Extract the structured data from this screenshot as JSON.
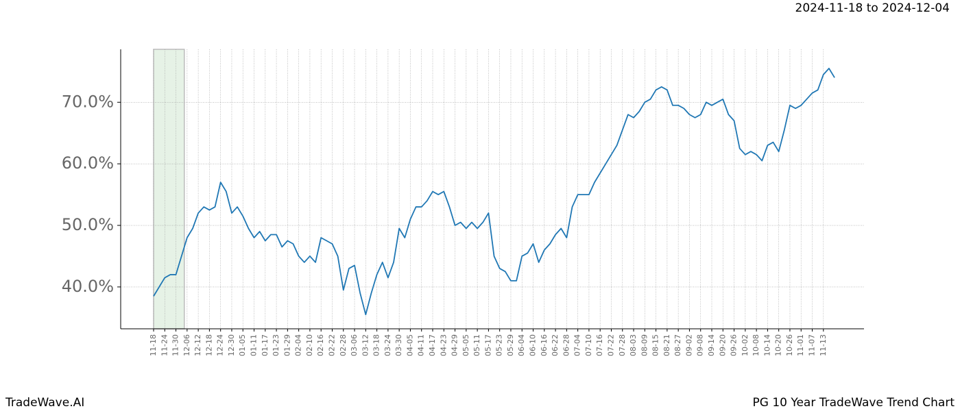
{
  "chart_data": {
    "type": "line",
    "subtitle": "2024-11-18 to 2024-12-04",
    "brand": "TradeWave.AI",
    "title": "PG 10 Year TradeWave Trend Chart",
    "categories": [
      "11-18",
      null,
      "11-24",
      null,
      "11-30",
      null,
      "12-06",
      null,
      "12-12",
      null,
      "12-18",
      null,
      "12-24",
      null,
      "12-30",
      null,
      "01-05",
      null,
      "01-11",
      null,
      "01-17",
      null,
      "01-23",
      null,
      "01-29",
      null,
      "02-04",
      null,
      "02-10",
      null,
      "02-16",
      null,
      "02-22",
      null,
      "02-28",
      null,
      "03-06",
      null,
      "03-12",
      null,
      "03-18",
      null,
      "03-24",
      null,
      "03-30",
      null,
      "04-05",
      null,
      "04-11",
      null,
      "04-17",
      null,
      "04-23",
      null,
      "04-29",
      null,
      "05-05",
      null,
      "05-11",
      null,
      "05-17",
      null,
      "05-23",
      null,
      "05-29",
      null,
      "06-04",
      null,
      "06-10",
      null,
      "06-16",
      null,
      "06-22",
      null,
      "06-28",
      null,
      "07-04",
      null,
      "07-10",
      null,
      "07-16",
      null,
      "07-22",
      null,
      "07-28",
      null,
      "08-03",
      null,
      "08-09",
      null,
      "08-15",
      null,
      "08-21",
      null,
      "08-27",
      null,
      "09-02",
      null,
      "09-08",
      null,
      "09-14",
      null,
      "09-20",
      null,
      "09-26",
      null,
      "10-02",
      null,
      "10-08",
      null,
      "10-14",
      null,
      "10-20",
      null,
      "10-26",
      null,
      "11-01",
      null,
      "11-07",
      null,
      "11-13",
      null,
      null
    ],
    "series": [
      {
        "color": "#1f77b4",
        "values": [
          38.5,
          40,
          41.5,
          42,
          42,
          45,
          48,
          49.5,
          52,
          53,
          52.5,
          53,
          57,
          55.5,
          52,
          53,
          51.5,
          49.5,
          48,
          49,
          47.5,
          48.5,
          48.5,
          46.5,
          47.5,
          47,
          45,
          44,
          45,
          44,
          48,
          47.5,
          47,
          45,
          39.5,
          43,
          43.5,
          39,
          35.5,
          39,
          42,
          44,
          41.5,
          44,
          49.5,
          48,
          51,
          53,
          53,
          54,
          55.5,
          55,
          55.5,
          53,
          50,
          50.5,
          49.5,
          50.5,
          49.5,
          50.5,
          52,
          45,
          43,
          42.5,
          41,
          41,
          45,
          45.5,
          47,
          44,
          46,
          47,
          48.5,
          49.5,
          48,
          53,
          55,
          55,
          55,
          57,
          58.5,
          60,
          61.5,
          63,
          65.5,
          68,
          67.5,
          68.5,
          70,
          70.5,
          72,
          72.5,
          72,
          69.5,
          69.5,
          69,
          68,
          67.5,
          68,
          70,
          69.5,
          70,
          70.5,
          68,
          67,
          62.5,
          61.5,
          62,
          61.5,
          60.5,
          63,
          63.5,
          62,
          65.5,
          69.5,
          69,
          69.5,
          70.5,
          71.5,
          72,
          74.5,
          75.5,
          74
        ]
      }
    ],
    "ylim": [
      33.2,
      78.6
    ],
    "yticks": [
      {
        "value": 40,
        "label": "40.0%"
      },
      {
        "value": 50,
        "label": "50.0%"
      },
      {
        "value": 60,
        "label": "60.0%"
      },
      {
        "value": 70,
        "label": "70.0%"
      }
    ],
    "grid": true,
    "highlight": {
      "start": 0,
      "end": 5.5,
      "color": "#e6f2e6"
    }
  }
}
